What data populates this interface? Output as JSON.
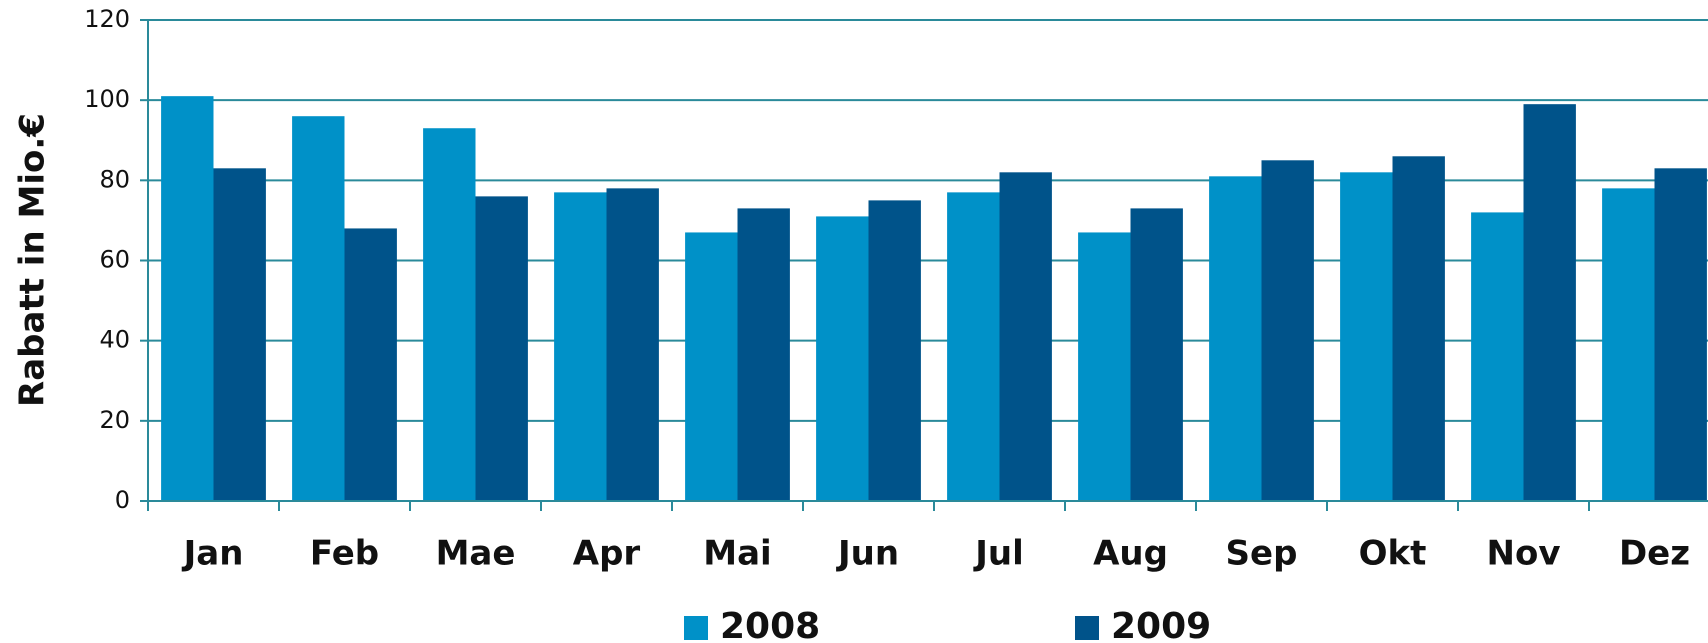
{
  "chart_data": {
    "type": "bar",
    "y_label": "Rabatt in Mio.€",
    "categories": [
      "Jan",
      "Feb",
      "Mae",
      "Apr",
      "Mai",
      "Jun",
      "Jul",
      "Aug",
      "Sep",
      "Okt",
      "Nov",
      "Dez"
    ],
    "series": [
      {
        "name": "2008",
        "color": "#0091c8",
        "values": [
          101,
          96,
          93,
          77,
          67,
          71,
          77,
          67,
          81,
          82,
          72,
          78
        ]
      },
      {
        "name": "2009",
        "color": "#00538a",
        "values": [
          83,
          68,
          76,
          78,
          73,
          75,
          82,
          73,
          85,
          86,
          99,
          83
        ]
      }
    ],
    "ylim": [
      0,
      120
    ],
    "yticks": [
      0,
      20,
      40,
      60,
      80,
      100,
      120
    ],
    "grid": true,
    "legend": "bottom"
  }
}
